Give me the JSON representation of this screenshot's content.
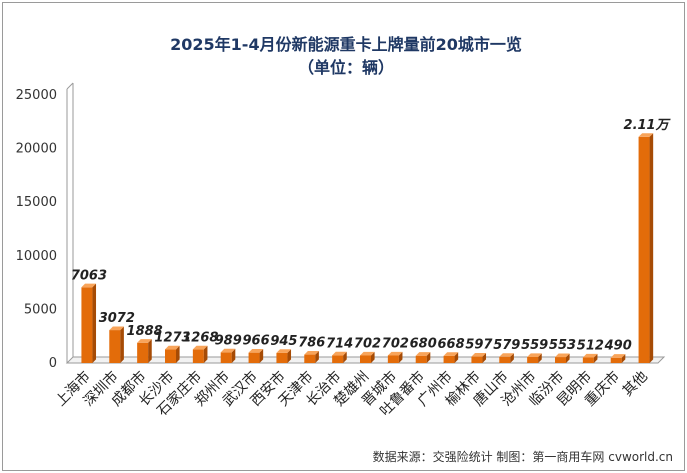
{
  "title": "2025年1-4月份新能源重卡上牌量前20城市一览",
  "subtitle": "（单位：辆）",
  "source": "数据来源：交强险统计   制图：第一商用车网 cvworld.cn",
  "colors": {
    "bar_front": "#e36c0a",
    "bar_side": "#a64b05",
    "bar_top": "#f8a45a",
    "axis": "#9a9a9a",
    "title": "#1f3864"
  },
  "chart_data": {
    "type": "bar",
    "title": "2025年1-4月份新能源重卡上牌量前20城市一览",
    "subtitle": "（单位：辆）",
    "xlabel": "",
    "ylabel": "",
    "ylim": [
      0,
      25000
    ],
    "yticks": [
      "0",
      "5000",
      "10000",
      "15000",
      "20000",
      "25000"
    ],
    "grid": false,
    "categories": [
      "上海市",
      "深圳市",
      "成都市",
      "长沙市",
      "石家庄市",
      "郑州市",
      "武汉市",
      "西安市",
      "天津市",
      "长治市",
      "楚雄州",
      "晋城市",
      "吐鲁番市",
      "广州市",
      "榆林市",
      "唐山市",
      "沧州市",
      "临汾市",
      "昆明市",
      "重庆市",
      "其他"
    ],
    "values": [
      7063,
      3072,
      1888,
      1273,
      1268,
      989,
      966,
      945,
      786,
      714,
      702,
      702,
      680,
      668,
      597,
      579,
      559,
      553,
      512,
      490,
      21100
    ],
    "labels": [
      "7063",
      "3072",
      "1888",
      "1273",
      "1268",
      "989",
      "966",
      "945",
      "786",
      "714",
      "702",
      "702",
      "680",
      "668",
      "597",
      "579",
      "559",
      "553",
      "512",
      "490",
      "2.11万"
    ]
  }
}
